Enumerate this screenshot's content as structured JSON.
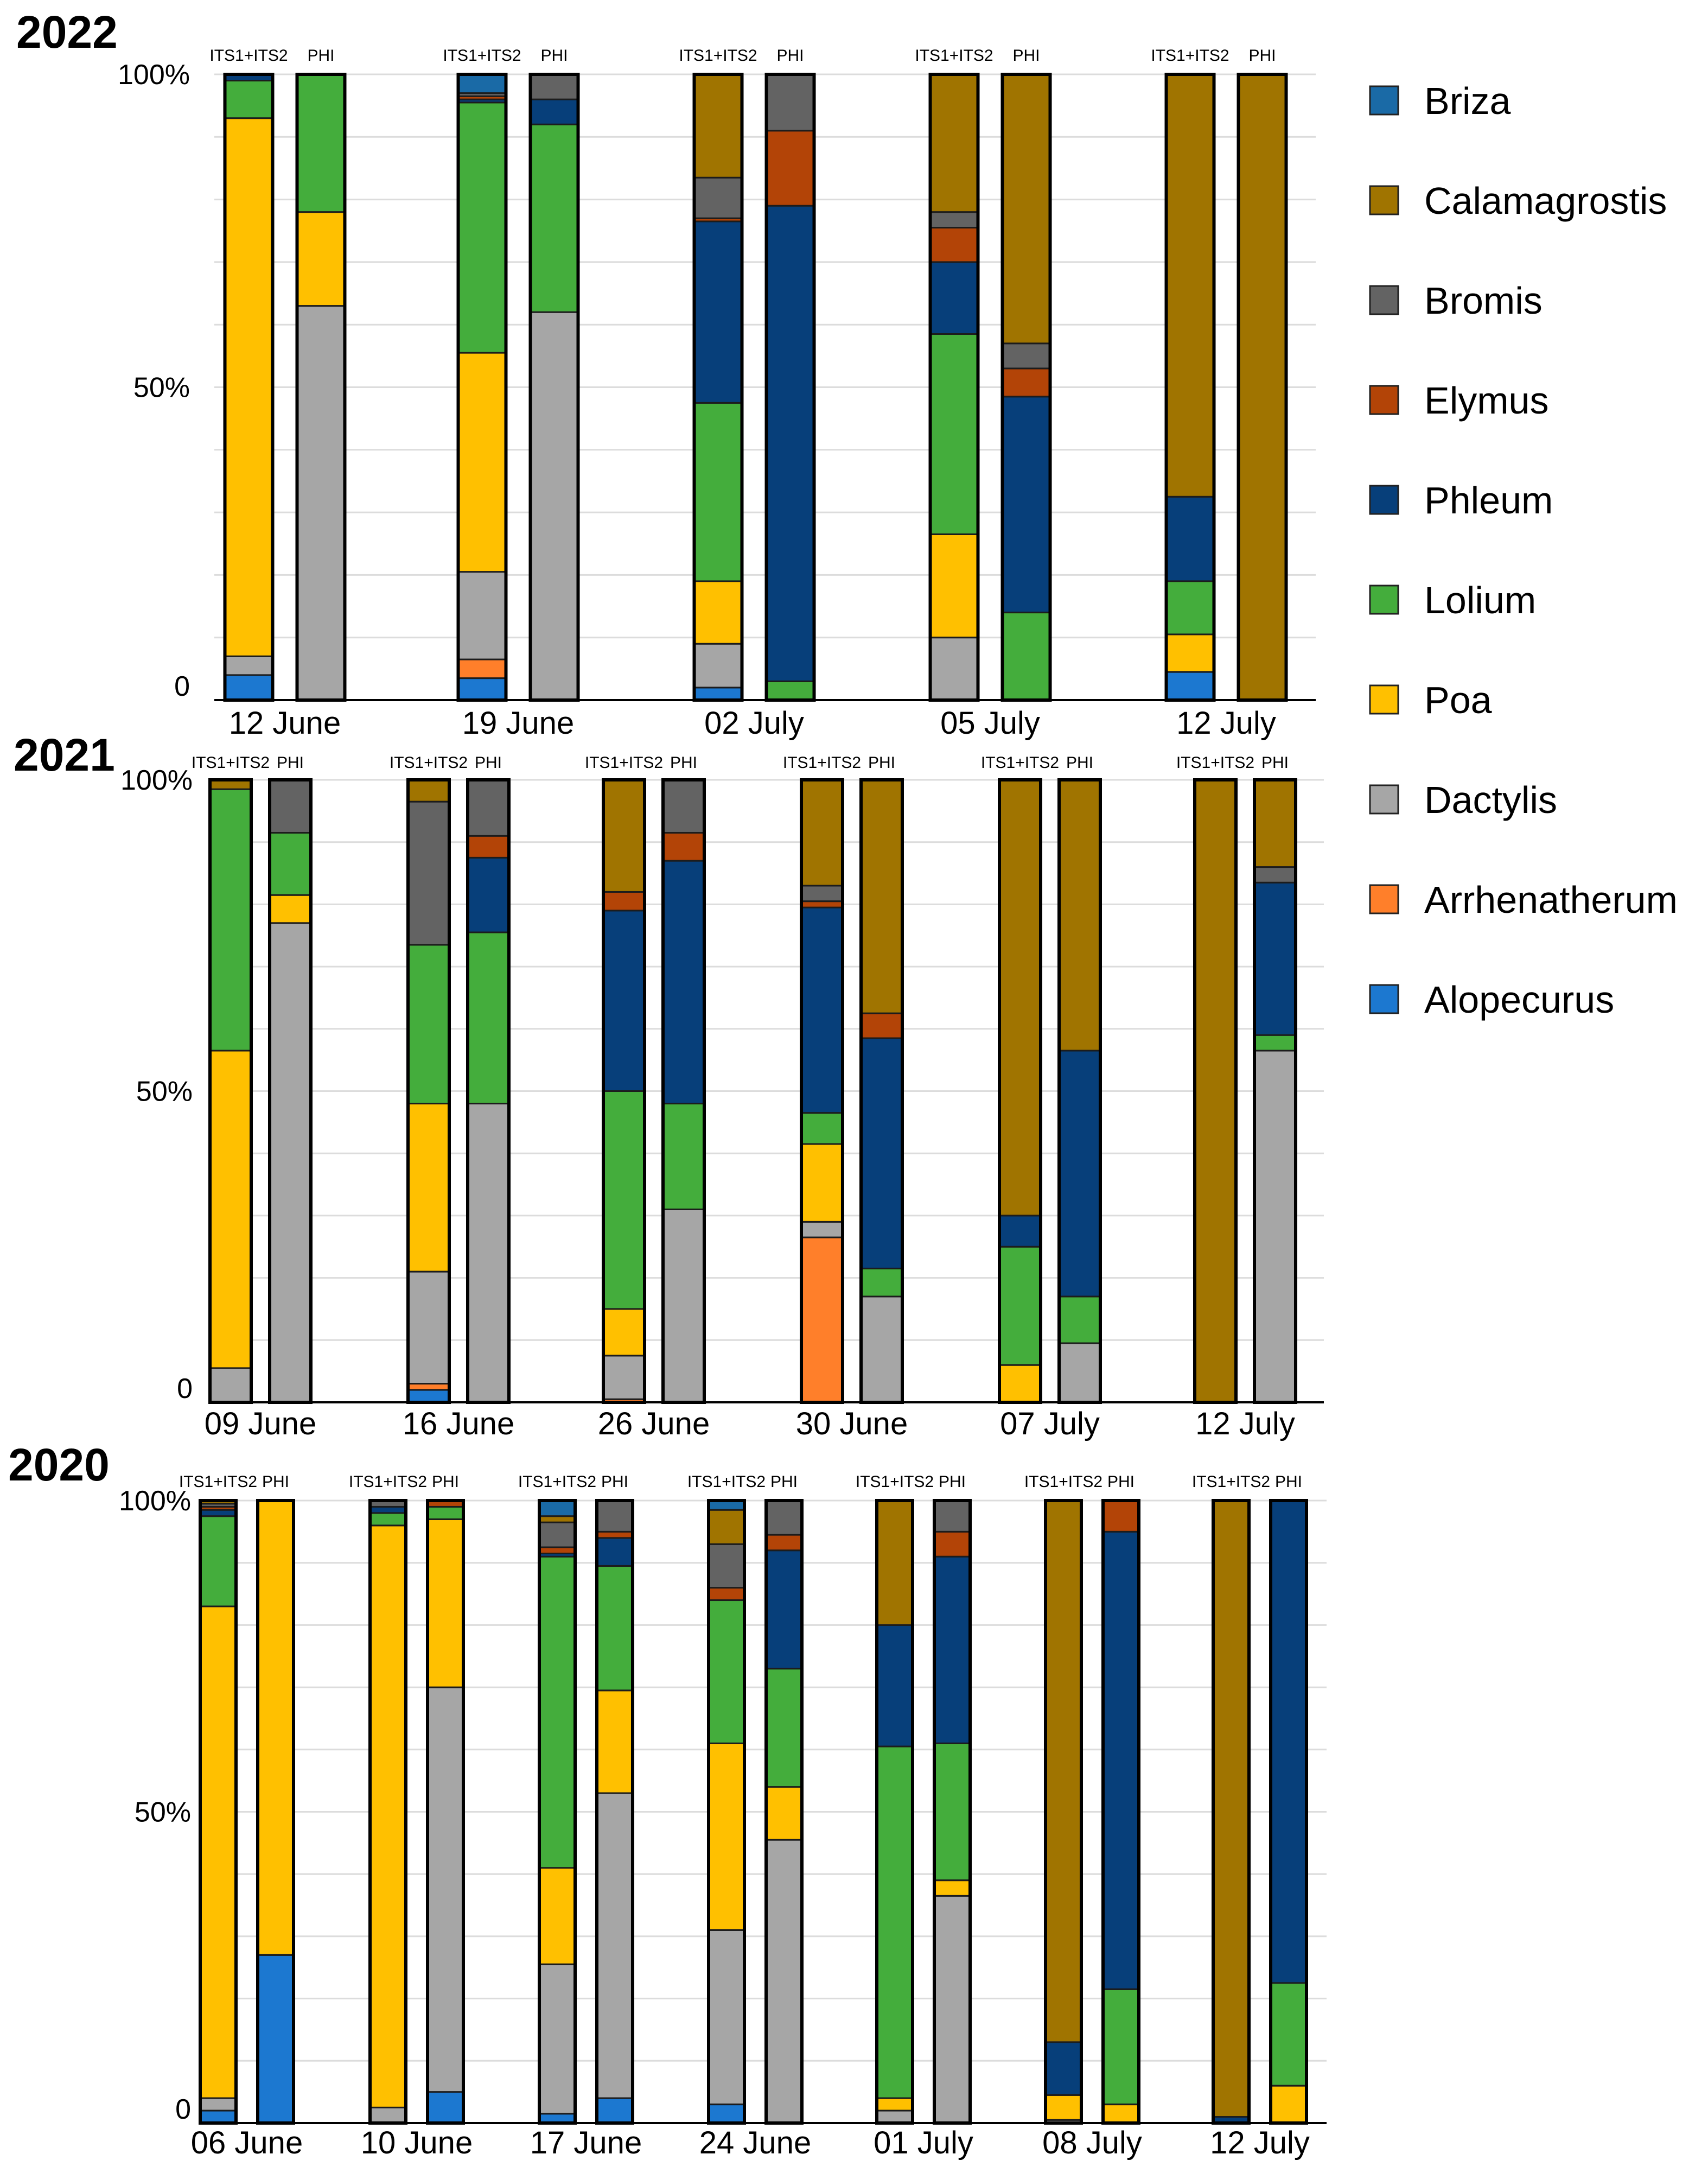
{
  "legend": [
    {
      "name": "Briza",
      "color": "#1A6AA6"
    },
    {
      "name": "Calamagrostis",
      "color": "#A07400"
    },
    {
      "name": "Bromis",
      "color": "#636363"
    },
    {
      "name": "Elymus",
      "color": "#B34407"
    },
    {
      "name": "Phleum",
      "color": "#073F7A"
    },
    {
      "name": "Lolium",
      "color": "#44AD3C"
    },
    {
      "name": "Poa",
      "color": "#FFC000"
    },
    {
      "name": "Dactylis",
      "color": "#A6A6A6"
    },
    {
      "name": "Arrhenatherum",
      "color": "#FF7F2A"
    },
    {
      "name": "Alopecurus",
      "color": "#1C78D0"
    }
  ],
  "chart_data": [
    {
      "type": "bar",
      "stacked": true,
      "title": "2022",
      "ylim": [
        0,
        100
      ],
      "yticks": [
        "0",
        "50%",
        "100%"
      ],
      "column_labels": [
        "ITS1+ITS2",
        "PHI"
      ],
      "groups": [
        {
          "date": "12 June",
          "bars": [
            {
              "Alopecurus": 4,
              "Dactylis": 3,
              "Poa": 86,
              "Lolium": 6,
              "Phleum": 1
            },
            {
              "Dactylis": 63,
              "Poa": 15,
              "Lolium": 22
            }
          ]
        },
        {
          "date": "19 June",
          "bars": [
            {
              "Alopecurus": 3.5,
              "Arrhenatherum": 3,
              "Dactylis": 14,
              "Poa": 35,
              "Lolium": 40,
              "Phleum": 0.5,
              "Bromis": 0.5,
              "Elymus": 0.5,
              "Briza": 3
            },
            {
              "Dactylis": 62,
              "Lolium": 30,
              "Phleum": 4,
              "Bromis": 4
            }
          ]
        },
        {
          "date": "02 July",
          "bars": [
            {
              "Alopecurus": 2,
              "Dactylis": 7,
              "Poa": 10,
              "Lolium": 28.5,
              "Phleum": 29,
              "Elymus": 0.5,
              "Bromis": 6.5,
              "Calamagrostis": 16.5
            },
            {
              "Lolium": 3,
              "Phleum": 76,
              "Elymus": 12,
              "Bromis": 9
            }
          ]
        },
        {
          "date": "05 July",
          "bars": [
            {
              "Dactylis": 10,
              "Poa": 16.5,
              "Lolium": 32,
              "Phleum": 11.5,
              "Elymus": 5.5,
              "Bromis": 2.5,
              "Calamagrostis": 22
            },
            {
              "Lolium": 14,
              "Phleum": 34.5,
              "Elymus": 4.5,
              "Bromis": 4,
              "Calamagrostis": 43
            }
          ]
        },
        {
          "date": "12 July",
          "bars": [
            {
              "Alopecurus": 4.5,
              "Poa": 6,
              "Lolium": 8.5,
              "Phleum": 13.5,
              "Calamagrostis": 67.5
            },
            {
              "Calamagrostis": 100
            }
          ]
        }
      ]
    },
    {
      "type": "bar",
      "stacked": true,
      "title": "2021",
      "ylim": [
        0,
        100
      ],
      "yticks": [
        "0",
        "50%",
        "100%"
      ],
      "column_labels": [
        "ITS1+ITS2",
        "PHI"
      ],
      "groups": [
        {
          "date": "09 June",
          "bars": [
            {
              "Dactylis": 5.5,
              "Poa": 51,
              "Lolium": 42,
              "Calamagrostis": 1.5
            },
            {
              "Dactylis": 77,
              "Poa": 4.5,
              "Lolium": 10,
              "Bromis": 8.5
            }
          ]
        },
        {
          "date": "16 June",
          "bars": [
            {
              "Alopecurus": 2,
              "Arrhenatherum": 1,
              "Dactylis": 18,
              "Poa": 27,
              "Lolium": 25.5,
              "Bromis": 23,
              "Calamagrostis": 3.5
            },
            {
              "Dactylis": 48,
              "Lolium": 27.5,
              "Phleum": 12,
              "Elymus": 3.5,
              "Bromis": 9
            }
          ]
        },
        {
          "date": "26 June",
          "bars": [
            {
              "Arrhenatherum": 0.5,
              "Dactylis": 7,
              "Poa": 7.5,
              "Lolium": 35,
              "Phleum": 29,
              "Elymus": 3,
              "Calamagrostis": 18
            },
            {
              "Dactylis": 31,
              "Lolium": 17,
              "Phleum": 39,
              "Elymus": 4.5,
              "Bromis": 8.5
            }
          ]
        },
        {
          "date": "30 June",
          "bars": [
            {
              "Arrhenatherum": 26.5,
              "Dactylis": 2.5,
              "Poa": 12.5,
              "Lolium": 5,
              "Phleum": 33,
              "Elymus": 1,
              "Bromis": 2.5,
              "Calamagrostis": 17
            },
            {
              "Dactylis": 17,
              "Lolium": 4.5,
              "Phleum": 37,
              "Elymus": 4,
              "Calamagrostis": 37.5
            }
          ]
        },
        {
          "date": "07 July",
          "bars": [
            {
              "Poa": 6,
              "Lolium": 19,
              "Phleum": 5,
              "Calamagrostis": 70
            },
            {
              "Dactylis": 9.5,
              "Lolium": 7.5,
              "Phleum": 39.5,
              "Calamagrostis": 43.5
            }
          ]
        },
        {
          "date": "12 July",
          "bars": [
            {
              "Calamagrostis": 100
            },
            {
              "Dactylis": 56.5,
              "Lolium": 2.5,
              "Phleum": 24.5,
              "Bromis": 2.5,
              "Calamagrostis": 14
            }
          ]
        }
      ]
    },
    {
      "type": "bar",
      "stacked": true,
      "title": "2020",
      "ylim": [
        0,
        100
      ],
      "yticks": [
        "0",
        "50%",
        "100%"
      ],
      "column_labels": [
        "ITS1+ITS2",
        "PHI"
      ],
      "groups": [
        {
          "date": "06 June",
          "bars": [
            {
              "Alopecurus": 2,
              "Phleum": 1,
              "Dactylis": 2,
              "Poa": 79,
              "Lolium": 14.5,
              "Elymus": 0.5,
              "Bromis": 0.5,
              "Calamagrostis": 0.5
            },
            {
              "Alopecurus": 27,
              "Poa": 73
            }
          ]
        },
        {
          "date": "10 June",
          "bars": [
            {
              "Phleum": 1,
              "Dactylis": 2.5,
              "Poa": 93.5,
              "Lolium": 2,
              "Bromis": 1
            },
            {
              "Alopecurus": 5,
              "Dactylis": 65,
              "Poa": 27,
              "Lolium": 2,
              "Elymus": 1
            }
          ]
        },
        {
          "date": "17 June",
          "bars": [
            {
              "Alopecurus": 1.5,
              "Phleum": 0.5,
              "Dactylis": 24,
              "Poa": 15.5,
              "Lolium": 50,
              "Elymus": 1,
              "Bromis": 4,
              "Calamagrostis": 1,
              "Briza": 2.5
            },
            {
              "Alopecurus": 4,
              "Dactylis": 49,
              "Poa": 16.5,
              "Lolium": 20,
              "Phleum": 4.5,
              "Elymus": 1,
              "Bromis": 5
            }
          ]
        },
        {
          "date": "24 June",
          "bars": [
            {
              "Alopecurus": 3,
              "Dactylis": 28,
              "Poa": 30,
              "Lolium": 23,
              "Elymus": 2,
              "Bromis": 7,
              "Calamagrostis": 5.5,
              "Briza": 1.5
            },
            {
              "Dactylis": 45.5,
              "Poa": 8.5,
              "Lolium": 19,
              "Phleum": 19,
              "Elymus": 2.5,
              "Bromis": 5.5
            }
          ]
        },
        {
          "date": "01 July",
          "bars": [
            {
              "Dactylis": 2,
              "Poa": 2,
              "Lolium": 56.5,
              "Phleum": 19.5,
              "Calamagrostis": 20
            },
            {
              "Dactylis": 36.5,
              "Poa": 2.5,
              "Lolium": 22,
              "Phleum": 30,
              "Elymus": 4,
              "Bromis": 5
            }
          ]
        },
        {
          "date": "08 July",
          "bars": [
            {
              "Dactylis": 0.5,
              "Poa": 4,
              "Phleum": 8.5,
              "Calamagrostis": 87
            },
            {
              "Poa": 3,
              "Lolium": 18.5,
              "Phleum": 73.5,
              "Elymus": 5
            }
          ]
        },
        {
          "date": "12 July",
          "bars": [
            {
              "Phleum": 1,
              "Calamagrostis": 99
            },
            {
              "Poa": 6,
              "Lolium": 16.5,
              "Phleum": 77.5
            }
          ]
        }
      ]
    }
  ]
}
